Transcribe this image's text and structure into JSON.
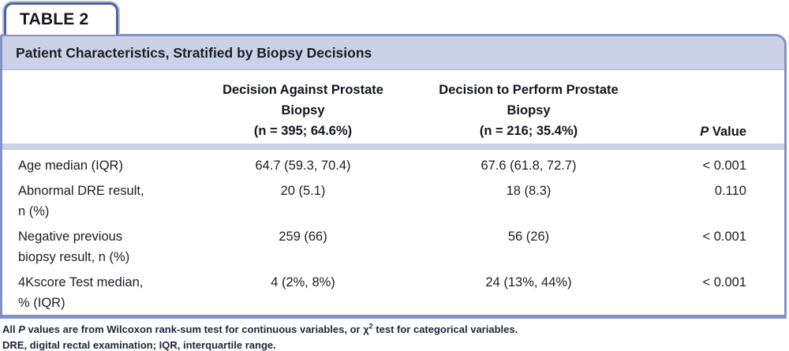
{
  "tab": {
    "label": "TABLE 2"
  },
  "title": "Patient Characteristics, Stratified by Biopsy Decisions",
  "header": {
    "against": [
      "Decision Against Prostate",
      "Biopsy",
      "(n = 395; 64.6%)"
    ],
    "perform": [
      "Decision to Perform Prostate",
      "Biopsy",
      "(n = 216; 35.4%)"
    ],
    "p_italic": "P",
    "p_rest": " Value"
  },
  "table": {
    "rows": [
      {
        "label": [
          "Age median (IQR)"
        ],
        "against": "64.7 (59.3, 70.4)",
        "perform": "67.6 (61.8, 72.7)",
        "p": "< 0.001"
      },
      {
        "label": [
          "Abnormal DRE result,",
          "n (%)"
        ],
        "against": "20 (5.1)",
        "perform": "18 (8.3)",
        "p": "0.110"
      },
      {
        "label": [
          "Negative previous",
          "biopsy result, n (%)"
        ],
        "against": "259 (66)",
        "perform": "56 (26)",
        "p": "< 0.001"
      },
      {
        "label": [
          "4Kscore Test median,",
          "% (IQR)"
        ],
        "against": "4 (2%, 8%)",
        "perform": "24 (13%, 44%)",
        "p": "< 0.001"
      }
    ]
  },
  "footnotes": [
    {
      "pre": "All ",
      "italic": "P",
      "mid": " values are from Wilcoxon rank-sum test for continuous variables, or ",
      "chi": "χ",
      "sup": "2",
      "post": " test for categorical variables."
    },
    {
      "text": "DRE, digital rectal examination; IQR, interquartile range."
    }
  ],
  "colors": {
    "panel_border": "#8392c6",
    "band_fill": "#cbd1e6",
    "tab_border": "#53639a",
    "tab_halo": "#b9c2dd",
    "text": "#1c1e26"
  }
}
